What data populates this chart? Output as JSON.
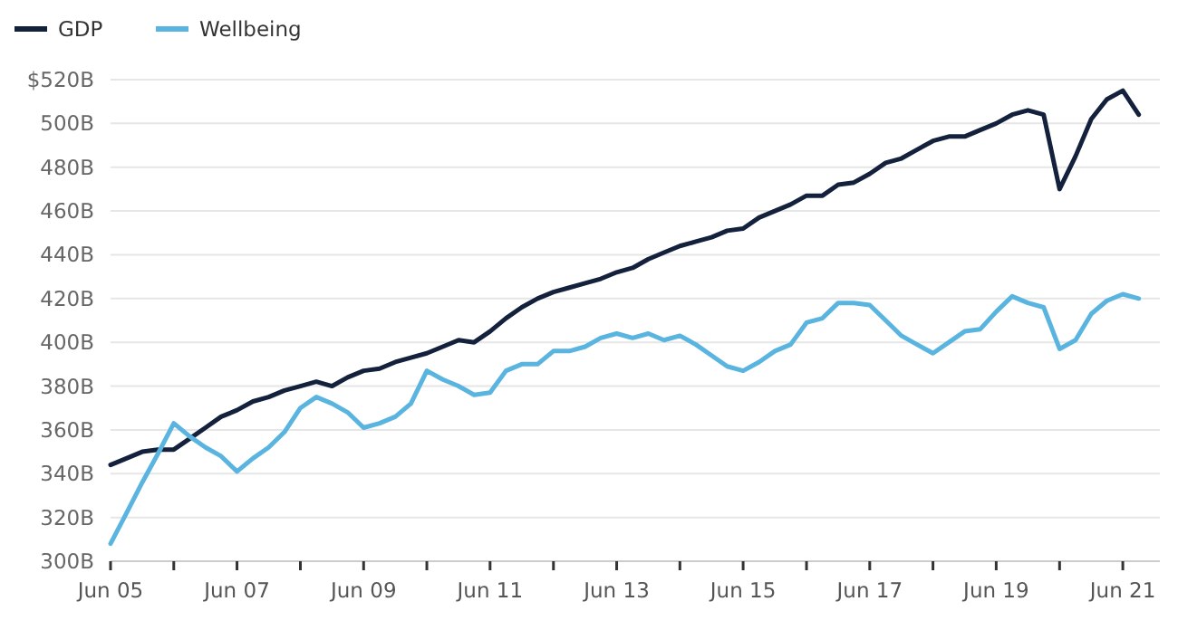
{
  "chart_data": {
    "type": "line",
    "x": [
      "2005-06",
      "2005-09",
      "2005-12",
      "2006-03",
      "2006-06",
      "2006-09",
      "2006-12",
      "2007-03",
      "2007-06",
      "2007-09",
      "2007-12",
      "2008-03",
      "2008-06",
      "2008-09",
      "2008-12",
      "2009-03",
      "2009-06",
      "2009-09",
      "2009-12",
      "2010-03",
      "2010-06",
      "2010-09",
      "2010-12",
      "2011-03",
      "2011-06",
      "2011-09",
      "2011-12",
      "2012-03",
      "2012-06",
      "2012-09",
      "2012-12",
      "2013-03",
      "2013-06",
      "2013-09",
      "2013-12",
      "2014-03",
      "2014-06",
      "2014-09",
      "2014-12",
      "2015-03",
      "2015-06",
      "2015-09",
      "2015-12",
      "2016-03",
      "2016-06",
      "2016-09",
      "2016-12",
      "2017-03",
      "2017-06",
      "2017-09",
      "2017-12",
      "2018-03",
      "2018-06",
      "2018-09",
      "2018-12",
      "2019-03",
      "2019-06",
      "2019-09",
      "2019-12",
      "2020-03",
      "2020-06",
      "2020-09",
      "2020-12",
      "2021-03",
      "2021-06",
      "2021-09"
    ],
    "series": [
      {
        "name": "GDP",
        "color": "#14213d",
        "values": [
          344,
          347,
          350,
          351,
          351,
          356,
          361,
          366,
          369,
          373,
          375,
          378,
          380,
          382,
          380,
          384,
          387,
          388,
          391,
          393,
          395,
          398,
          401,
          400,
          405,
          411,
          416,
          420,
          423,
          425,
          427,
          429,
          432,
          434,
          438,
          441,
          444,
          446,
          448,
          451,
          452,
          457,
          460,
          463,
          467,
          467,
          472,
          473,
          477,
          482,
          484,
          488,
          492,
          494,
          494,
          497,
          500,
          504,
          506,
          504,
          470,
          485,
          502,
          511,
          515,
          504
        ]
      },
      {
        "name": "Wellbeing",
        "color": "#5ab4e0",
        "values": [
          308,
          322,
          336,
          349,
          363,
          357,
          352,
          348,
          341,
          347,
          352,
          359,
          370,
          375,
          372,
          368,
          361,
          363,
          366,
          372,
          387,
          383,
          380,
          376,
          377,
          387,
          390,
          390,
          396,
          396,
          398,
          402,
          404,
          402,
          404,
          401,
          403,
          399,
          394,
          389,
          387,
          391,
          396,
          399,
          409,
          411,
          418,
          418,
          417,
          410,
          403,
          399,
          395,
          400,
          405,
          406,
          414,
          421,
          418,
          416,
          397,
          401,
          413,
          419,
          422,
          420
        ]
      }
    ],
    "xlim": [
      "2005-06",
      "2022-01"
    ],
    "xticks": [
      {
        "value": "2005-06",
        "label": "Jun 05"
      },
      {
        "value": "2006-06",
        "label": null
      },
      {
        "value": "2007-06",
        "label": "Jun 07"
      },
      {
        "value": "2008-06",
        "label": null
      },
      {
        "value": "2009-06",
        "label": "Jun 09"
      },
      {
        "value": "2010-06",
        "label": null
      },
      {
        "value": "2011-06",
        "label": "Jun 11"
      },
      {
        "value": "2012-06",
        "label": null
      },
      {
        "value": "2013-06",
        "label": "Jun 13"
      },
      {
        "value": "2014-06",
        "label": null
      },
      {
        "value": "2015-06",
        "label": "Jun 15"
      },
      {
        "value": "2016-06",
        "label": null
      },
      {
        "value": "2017-06",
        "label": "Jun 17"
      },
      {
        "value": "2018-06",
        "label": null
      },
      {
        "value": "2019-06",
        "label": "Jun 19"
      },
      {
        "value": "2020-06",
        "label": null
      },
      {
        "value": "2021-06",
        "label": "Jun 21"
      }
    ],
    "ylim": [
      300,
      520
    ],
    "yticks": [
      {
        "value": 300,
        "label": "300B"
      },
      {
        "value": 320,
        "label": "320B"
      },
      {
        "value": 340,
        "label": "340B"
      },
      {
        "value": 360,
        "label": "360B"
      },
      {
        "value": 380,
        "label": "380B"
      },
      {
        "value": 400,
        "label": "400B"
      },
      {
        "value": 420,
        "label": "420B"
      },
      {
        "value": 440,
        "label": "440B"
      },
      {
        "value": 460,
        "label": "460B"
      },
      {
        "value": 480,
        "label": "480B"
      },
      {
        "value": 500,
        "label": "500B"
      },
      {
        "value": 520,
        "label": "$520B"
      }
    ],
    "grid": "y",
    "legend": "top left",
    "marker": "none",
    "line_style": "solid"
  }
}
